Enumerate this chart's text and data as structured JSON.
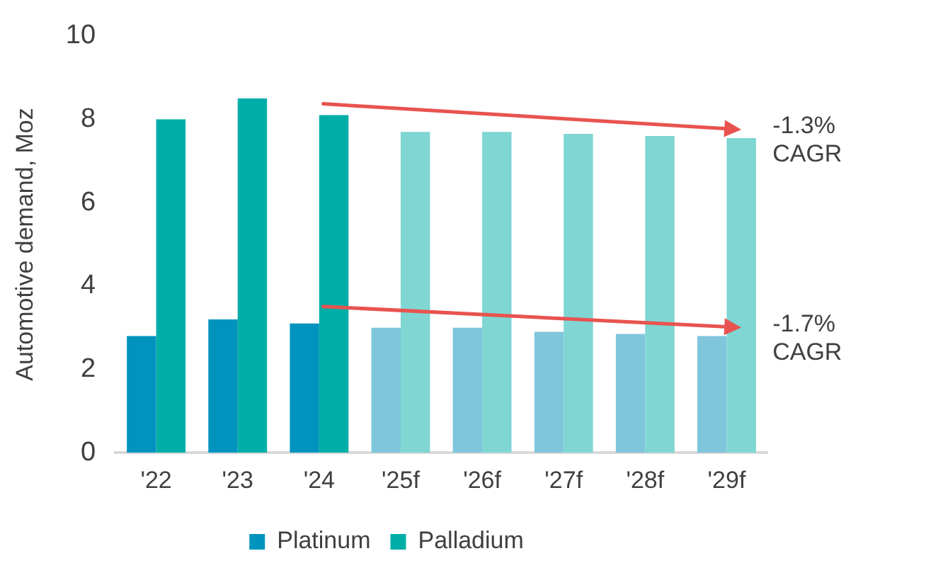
{
  "chart_data": {
    "type": "bar",
    "ylabel": "Automotive demand, Moz",
    "categories": [
      "'22",
      "'23",
      "'24",
      "'25f",
      "'26f",
      "'27f",
      "'28f",
      "'29f"
    ],
    "series": [
      {
        "name": "Platinum",
        "color": "#0093be",
        "colors": [
          "#0093be",
          "#0093be",
          "#0093be",
          "#7fc6dc",
          "#7fc6dc",
          "#7fc6dc",
          "#7fc6dc",
          "#7fc6dc"
        ],
        "values": [
          2.8,
          3.2,
          3.1,
          3.0,
          3.0,
          2.9,
          2.85,
          2.8
        ]
      },
      {
        "name": "Palladium",
        "color": "#00aea8",
        "colors": [
          "#00aea8",
          "#00aea8",
          "#00aea8",
          "#7fd6d3",
          "#7fd6d3",
          "#7fd6d3",
          "#7fd6d3",
          "#7fd6d3"
        ],
        "values": [
          8.0,
          8.5,
          8.1,
          7.7,
          7.7,
          7.65,
          7.6,
          7.55
        ]
      }
    ],
    "ylim": [
      0,
      10
    ],
    "yticks": [
      0,
      2,
      4,
      6,
      8,
      10
    ],
    "grid": false,
    "legend": "bottom",
    "annotations": [
      {
        "text": "-1.3% CAGR",
        "x": "'29f",
        "y": 7.55
      },
      {
        "text": "-1.7% CAGR",
        "x": "'29f",
        "y": 2.8
      }
    ]
  }
}
